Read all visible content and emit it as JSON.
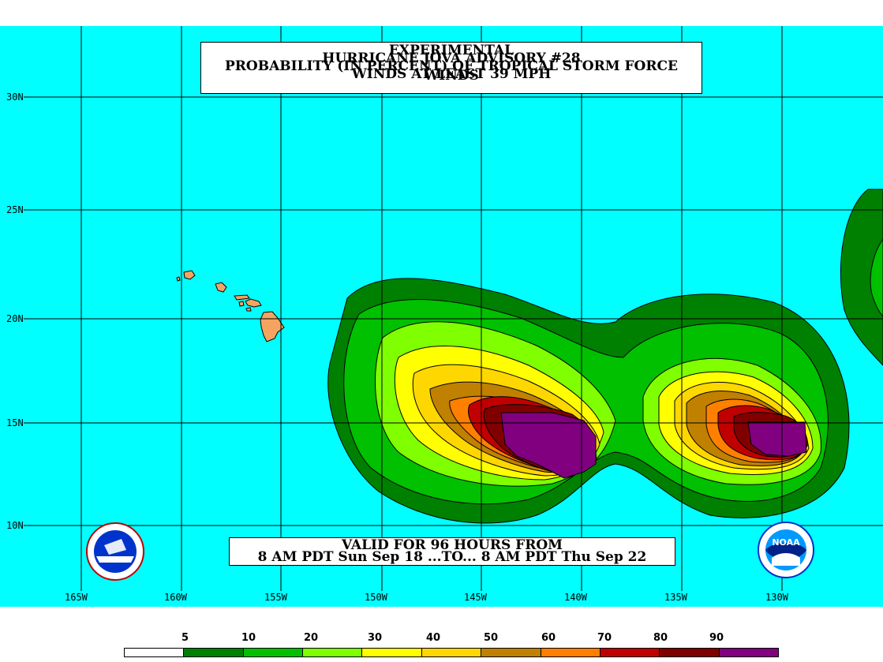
{
  "title": {
    "line1": "EXPERIMENTAL",
    "line2": "HURRICANE JOVA ADVISORY #28",
    "line3": "PROBABILITY (IN PERCENT) OF TROPICAL STORM FORCE WINDS",
    "line4": "WINDS AT LEAST 39 MPH"
  },
  "valid": {
    "line1": "VALID FOR 96 HOURS FROM",
    "line2": "8 AM PDT Sun Sep 18 ...TO... 8 AM PDT Thu Sep 22"
  },
  "axes": {
    "latitudes": [
      "30N",
      "25N",
      "20N",
      "15N",
      "10N"
    ],
    "longitudes": [
      "165W",
      "160W",
      "155W",
      "150W",
      "145W",
      "140W",
      "135W",
      "130W"
    ]
  },
  "legend": {
    "ticks": [
      "5",
      "10",
      "20",
      "30",
      "40",
      "50",
      "60",
      "70",
      "80",
      "90"
    ],
    "colors": [
      "#ffffff",
      "#008000",
      "#00c000",
      "#80ff00",
      "#ffff00",
      "#ffd700",
      "#c08000",
      "#ff8000",
      "#c00000",
      "#800000",
      "#800080"
    ]
  },
  "colors": {
    "ocean": "#00ffff",
    "land": "#f4a460",
    "grid": "#000000"
  },
  "logos": {
    "left": "nws-logo",
    "right": "noaa-logo",
    "right_text": "NOAA"
  }
}
